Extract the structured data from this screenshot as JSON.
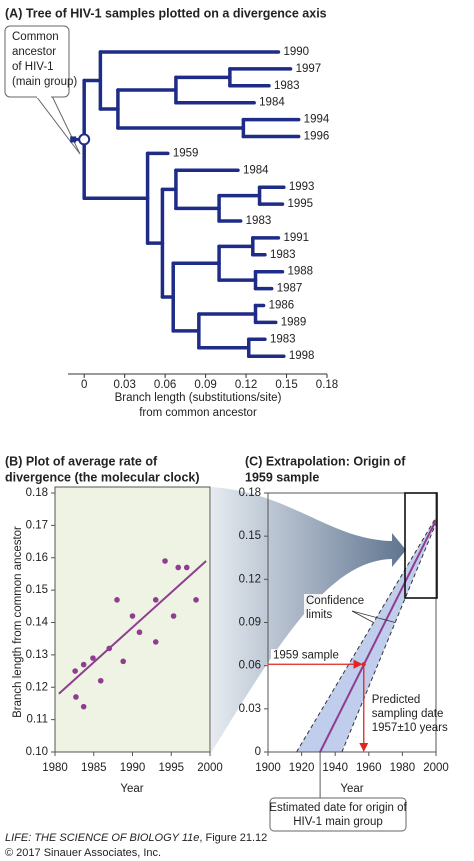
{
  "chart_data": [
    {
      "type": "tree",
      "title": "(A) Tree of HIV-1 samples plotted on a divergence axis",
      "annotation": [
        "Common",
        "ancestor",
        "of HIV-1",
        "(main group)"
      ],
      "xlabel": [
        "Branch length (substitutions/site)",
        "from common ancestor"
      ],
      "xlim": [
        -0.012,
        0.18
      ],
      "xticks": [
        0,
        0.03,
        0.06,
        0.09,
        0.12,
        0.15,
        0.18
      ],
      "color": "#1e2c87",
      "tree": {
        "x": 0,
        "children": [
          {
            "x": 0.012,
            "children": [
              {
                "x": 0.144,
                "label": "1990"
              },
              {
                "x": 0.025,
                "children": [
                  {
                    "x": 0.068,
                    "children": [
                      {
                        "x": 0.108,
                        "children": [
                          {
                            "x": 0.153,
                            "label": "1997"
                          },
                          {
                            "x": 0.137,
                            "label": "1983"
                          }
                        ]
                      },
                      {
                        "x": 0.126,
                        "label": "1984"
                      }
                    ]
                  },
                  {
                    "x": 0.118,
                    "children": [
                      {
                        "x": 0.159,
                        "label": "1994"
                      },
                      {
                        "x": 0.159,
                        "label": "1996"
                      }
                    ]
                  }
                ]
              }
            ]
          },
          {
            "x": 0.047,
            "children": [
              {
                "x": 0.062,
                "label": "1959"
              },
              {
                "x": 0.058,
                "children": [
                  {
                    "x": 0.068,
                    "children": [
                      {
                        "x": 0.114,
                        "label": "1984"
                      },
                      {
                        "x": 0.1,
                        "children": [
                          {
                            "x": 0.13,
                            "children": [
                              {
                                "x": 0.148,
                                "label": "1993"
                              },
                              {
                                "x": 0.147,
                                "label": "1995"
                              }
                            ]
                          },
                          {
                            "x": 0.116,
                            "label": "1983"
                          }
                        ]
                      }
                    ]
                  },
                  {
                    "x": 0.066,
                    "children": [
                      {
                        "x": 0.1,
                        "children": [
                          {
                            "x": 0.125,
                            "children": [
                              {
                                "x": 0.144,
                                "label": "1991"
                              },
                              {
                                "x": 0.134,
                                "label": "1983"
                              }
                            ]
                          },
                          {
                            "x": 0.127,
                            "children": [
                              {
                                "x": 0.147,
                                "label": "1988"
                              },
                              {
                                "x": 0.139,
                                "label": "1987"
                              }
                            ]
                          }
                        ]
                      },
                      {
                        "x": 0.085,
                        "children": [
                          {
                            "x": 0.127,
                            "children": [
                              {
                                "x": 0.133,
                                "label": "1986"
                              },
                              {
                                "x": 0.142,
                                "label": "1989"
                              }
                            ]
                          },
                          {
                            "x": 0.122,
                            "children": [
                              {
                                "x": 0.134,
                                "label": "1983"
                              },
                              {
                                "x": 0.148,
                                "label": "1998"
                              }
                            ]
                          }
                        ]
                      }
                    ]
                  }
                ]
              }
            ]
          }
        ]
      }
    },
    {
      "type": "scatter",
      "title": [
        "(B) Plot of average rate of",
        "divergence (the molecular clock)"
      ],
      "xlabel": "Year",
      "ylabel": "Branch length from common ancestor",
      "xlim": [
        1980,
        2000
      ],
      "xticks": [
        1980,
        1985,
        1990,
        1995,
        2000
      ],
      "ylim": [
        0.1,
        0.18
      ],
      "yticks": [
        {
          "value": 0.1,
          "label": "0.10"
        },
        0.11,
        0.12,
        0.13,
        0.14,
        0.15,
        0.16,
        0.17,
        0.18
      ],
      "background": "#eef3e3",
      "color": "#8e3d8f",
      "x": [
        1982.6,
        1982.7,
        1983.7,
        1983.7,
        1984.9,
        1985.9,
        1987,
        1988,
        1988.8,
        1990,
        1990.9,
        1993,
        1993,
        1994.2,
        1995.3,
        1995.9,
        1997,
        1998.2
      ],
      "values": [
        0.125,
        0.117,
        0.127,
        0.114,
        0.129,
        0.122,
        0.132,
        0.147,
        0.128,
        0.142,
        0.137,
        0.134,
        0.147,
        0.159,
        0.142,
        0.157,
        0.157,
        0.147
      ],
      "trend": {
        "x": [
          1980.5,
          1999.5
        ],
        "values": [
          0.118,
          0.159
        ],
        "color": "#8e3d8f"
      }
    },
    {
      "type": "extrapolation",
      "title": [
        "(C) Extrapolation: Origin of",
        "1959 sample"
      ],
      "xlabel": "Year",
      "xlim": [
        1900,
        2000
      ],
      "xticks": [
        1900,
        1920,
        1940,
        1960,
        1980,
        2000
      ],
      "ylim": [
        0,
        0.18
      ],
      "yticks": [
        0,
        0.03,
        0.06,
        0.09,
        0.12,
        0.15,
        0.18
      ],
      "fit": {
        "x": [
          1931,
          2000
        ],
        "values": [
          0,
          0.161
        ],
        "color": "#8e3d8f"
      },
      "confidence": {
        "label": [
          "Confidence",
          "limits"
        ],
        "color": "#b9c8ea",
        "upper": {
          "x": [
            1917,
            2000
          ],
          "values": [
            0,
            0.163
          ]
        },
        "lower": {
          "x": [
            1944,
            2000
          ],
          "values": [
            0,
            0.159
          ]
        }
      },
      "sample": {
        "label": "1959 sample",
        "x": 1957,
        "y": 0.061,
        "color": "#e0261f"
      },
      "prediction": [
        "Predicted",
        "sampling date",
        "1957±10 years"
      ],
      "origin": [
        "Estimated date for origin of",
        "HIV-1 main group"
      ]
    }
  ],
  "credit": [
    "LIFE: THE SCIENCE OF BIOLOGY 11e",
    ", Figure 21.12"
  ],
  "copyright": "© 2017 Sinauer Associates, Inc."
}
